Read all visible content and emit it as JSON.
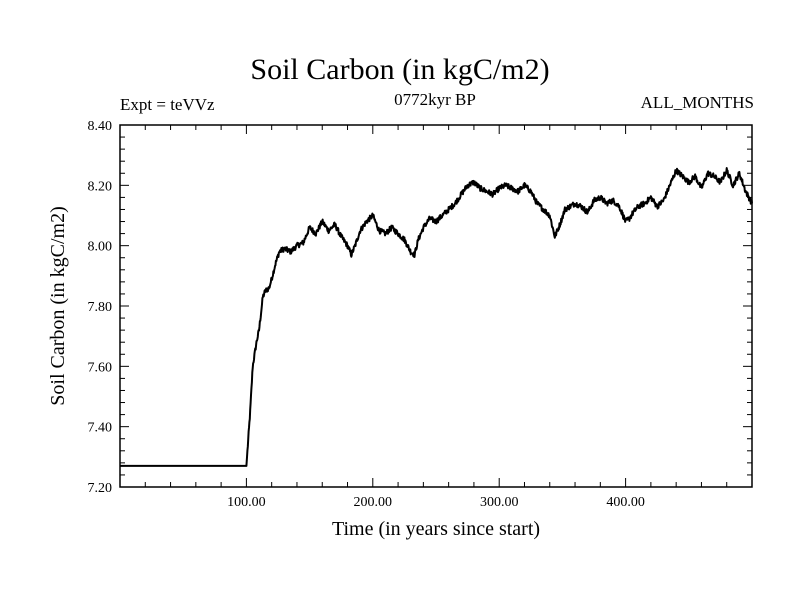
{
  "header": {
    "title": "Soil Carbon (in kgC/m2)",
    "left_note": "Expt = teVVz",
    "center_note": "0772kyr BP",
    "right_note": "ALL_MONTHS"
  },
  "chart_data": {
    "type": "line",
    "title": "Soil Carbon (in kgC/m2)",
    "xlabel": "Time (in years since start)",
    "ylabel": "Soil Carbon (in kgC/m2)",
    "xlim": [
      0,
      500
    ],
    "ylim": [
      7.2,
      8.4
    ],
    "x_ticks": [
      100,
      200,
      300,
      400
    ],
    "x_tick_labels": [
      "100.00",
      "200.00",
      "300.00",
      "400.00"
    ],
    "y_ticks": [
      7.2,
      7.4,
      7.6,
      7.8,
      8.0,
      8.2,
      8.4
    ],
    "y_tick_labels": [
      "7.20",
      "7.40",
      "7.60",
      "7.80",
      "8.00",
      "8.20",
      "8.40"
    ],
    "grid": false,
    "series": [
      {
        "x": [
          0,
          100,
          100.5,
          103,
          105,
          108,
          110,
          113,
          115,
          118,
          120,
          123,
          126,
          130,
          135,
          140,
          145,
          150,
          155,
          160,
          165,
          170,
          175,
          180,
          183,
          186,
          190,
          195,
          200,
          205,
          210,
          215,
          220,
          225,
          230,
          233,
          236,
          240,
          245,
          250,
          255,
          260,
          265,
          270,
          275,
          280,
          285,
          290,
          295,
          300,
          305,
          310,
          315,
          320,
          325,
          330,
          335,
          340,
          344,
          348,
          352,
          356,
          360,
          365,
          370,
          375,
          380,
          385,
          390,
          395,
          400,
          403,
          406,
          410,
          415,
          420,
          425,
          430,
          435,
          440,
          445,
          450,
          455,
          460,
          465,
          470,
          475,
          480,
          485,
          490,
          495,
          500
        ],
        "y": [
          7.27,
          7.27,
          7.3,
          7.45,
          7.6,
          7.68,
          7.72,
          7.83,
          7.85,
          7.86,
          7.89,
          7.94,
          7.98,
          7.99,
          7.98,
          8.0,
          8.01,
          8.06,
          8.04,
          8.08,
          8.05,
          8.07,
          8.03,
          8.0,
          7.97,
          8.0,
          8.05,
          8.08,
          8.1,
          8.05,
          8.04,
          8.06,
          8.04,
          8.02,
          7.98,
          7.97,
          8.02,
          8.06,
          8.09,
          8.08,
          8.1,
          8.12,
          8.14,
          8.17,
          8.2,
          8.21,
          8.19,
          8.18,
          8.17,
          8.19,
          8.2,
          8.19,
          8.18,
          8.2,
          8.18,
          8.14,
          8.12,
          8.1,
          8.03,
          8.07,
          8.12,
          8.13,
          8.14,
          8.13,
          8.11,
          8.15,
          8.16,
          8.14,
          8.15,
          8.13,
          8.08,
          8.09,
          8.11,
          8.13,
          8.14,
          8.16,
          8.13,
          8.15,
          8.2,
          8.25,
          8.23,
          8.21,
          8.23,
          8.19,
          8.24,
          8.23,
          8.21,
          8.25,
          8.2,
          8.24,
          8.18,
          8.14
        ]
      }
    ]
  }
}
